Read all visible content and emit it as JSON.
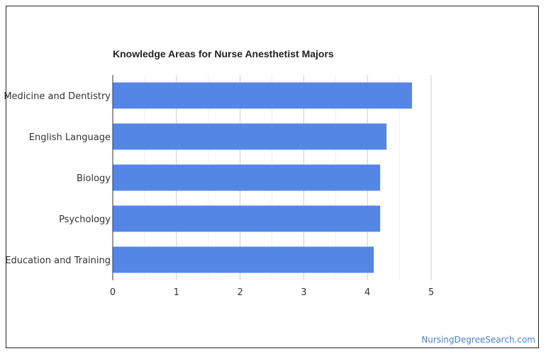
{
  "chart_data": {
    "type": "bar",
    "orientation": "horizontal",
    "title": "Knowledge Areas for Nurse Anesthetist Majors",
    "categories": [
      "Medicine and Dentistry",
      "English Language",
      "Biology",
      "Psychology",
      "Education and Training"
    ],
    "values": [
      4.7,
      4.3,
      4.2,
      4.2,
      4.1
    ],
    "xlim": [
      0,
      5
    ],
    "xticks": [
      "0",
      "1",
      "2",
      "3",
      "4",
      "5"
    ],
    "xlabel": "",
    "ylabel": "",
    "grid": true,
    "bar_color": "#5486e6"
  },
  "footer": {
    "source": "NursingDegreeSearch.com",
    "source_color": "#4a7fd4"
  }
}
